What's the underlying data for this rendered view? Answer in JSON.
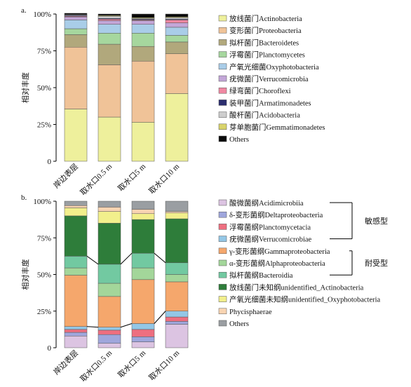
{
  "chart_data": [
    {
      "panel_label": "a.",
      "type": "bar",
      "stacked": true,
      "ylabel": "相对丰度",
      "ylim": [
        0,
        100
      ],
      "yticks": [
        "0",
        "25%",
        "50%",
        "75%",
        "100%"
      ],
      "categories": [
        "岸边表层",
        "取水口0.5 m",
        "取水口5 m",
        "取水口10 m"
      ],
      "series": [
        {
          "name": "放线菌门Actinobacteria",
          "color": "#eef09c",
          "values": [
            35.5,
            30,
            26.5,
            46
          ]
        },
        {
          "name": "变形菌门Proteobacteria",
          "color": "#f0c398",
          "values": [
            42,
            35.5,
            41.5,
            27
          ]
        },
        {
          "name": "拟杆菌门Bacteroidetes",
          "color": "#b1a87c",
          "values": [
            8.5,
            14,
            10,
            8
          ]
        },
        {
          "name": "浮霉菌门Planctomycetes",
          "color": "#a6d79e",
          "values": [
            4,
            7.5,
            9,
            4.5
          ]
        },
        {
          "name": "产氧光细菌Oxyphotobacteria",
          "color": "#a9cde8",
          "values": [
            6,
            6,
            6,
            5.5
          ]
        },
        {
          "name": "疣微菌门Verrucomicrobia",
          "color": "#c3a6d8",
          "values": [
            2,
            2.5,
            2.5,
            3
          ]
        },
        {
          "name": "绿弯菌门Choroflexi",
          "color": "#f088a2",
          "values": [
            0.5,
            1,
            0.5,
            2
          ]
        },
        {
          "name": "装甲菌门Armatimonadetes",
          "color": "#2b2d6e",
          "values": [
            0.5,
            0.5,
            0.5,
            0.5
          ]
        },
        {
          "name": "酸杆菌门Acidobacteria",
          "color": "#cdcdcd",
          "values": [
            0.5,
            1.5,
            0.5,
            1
          ]
        },
        {
          "name": "芽单胞菌门Gemmatimonadetes",
          "color": "#d8d36a",
          "values": [
            0,
            0.5,
            0.5,
            0.5
          ]
        },
        {
          "name": "Others",
          "color": "#0a0a0a",
          "values": [
            1,
            1,
            2.5,
            2
          ]
        }
      ]
    },
    {
      "panel_label": "b.",
      "type": "bar",
      "stacked": true,
      "ylabel": "相对丰度",
      "ylim": [
        0,
        100
      ],
      "yticks": [
        "0",
        "25%",
        "50%",
        "75%",
        "100%"
      ],
      "categories": [
        "岸边表层",
        "取水口0.5 m",
        "取水口5 m",
        "取水口10 m"
      ],
      "series": [
        {
          "name": "酸微菌纲Acidimicrobiia",
          "color": "#dcc4e2",
          "values": [
            8,
            3,
            4,
            16
          ]
        },
        {
          "name": "δ-变形菌纲Deltaproteobacteria",
          "color": "#9fa6dc",
          "values": [
            2.5,
            6,
            3.5,
            2
          ]
        },
        {
          "name": "浮霉菌纲Planctomycetacia",
          "color": "#ee6f80",
          "values": [
            2,
            3,
            5,
            3
          ]
        },
        {
          "name": "疣微菌纲Verrucomicrobiae",
          "color": "#93c7e6",
          "values": [
            2,
            2,
            4,
            4
          ]
        },
        {
          "name": "γ-变形菌纲Gammaproteobacteria",
          "color": "#f5a76c",
          "values": [
            35,
            21,
            30,
            20
          ]
        },
        {
          "name": "α-变形菌纲Alphaproteobacteria",
          "color": "#a3d69a",
          "values": [
            5,
            9,
            8,
            5
          ]
        },
        {
          "name": "拟杆菌纲Bacteroidia",
          "color": "#72c9a1",
          "values": [
            8,
            13,
            10,
            8
          ]
        },
        {
          "name": "放线菌门未知纲unidentified_Actinobacteria",
          "color": "#2e7d3a",
          "values": [
            27.5,
            28,
            23,
            30
          ]
        },
        {
          "name": "产氧光细菌未知纲unidentified_Oxyphotobacteria",
          "color": "#f2ef8c",
          "values": [
            5.5,
            8,
            4,
            4
          ]
        },
        {
          "name": "Phycisphaerae",
          "color": "#f9d4b2",
          "values": [
            1.5,
            3,
            3,
            1
          ]
        },
        {
          "name": "Others",
          "color": "#9a9ea2",
          "values": [
            3,
            4,
            5.5,
            7
          ]
        }
      ],
      "groups": [
        {
          "label": "敏感型",
          "members": [
            "酸微菌纲Acidimicrobiia",
            "δ-变形菌纲Deltaproteobacteria",
            "浮霉菌纲Planctomycetacia",
            "疣微菌纲Verrucomicrobiae"
          ]
        },
        {
          "label": "耐受型",
          "members": [
            "γ-变形菌纲Gammaproteobacteria",
            "α-变形菌纲Alphaproteobacteria",
            "拟杆菌纲Bacteroidia"
          ]
        }
      ]
    }
  ]
}
